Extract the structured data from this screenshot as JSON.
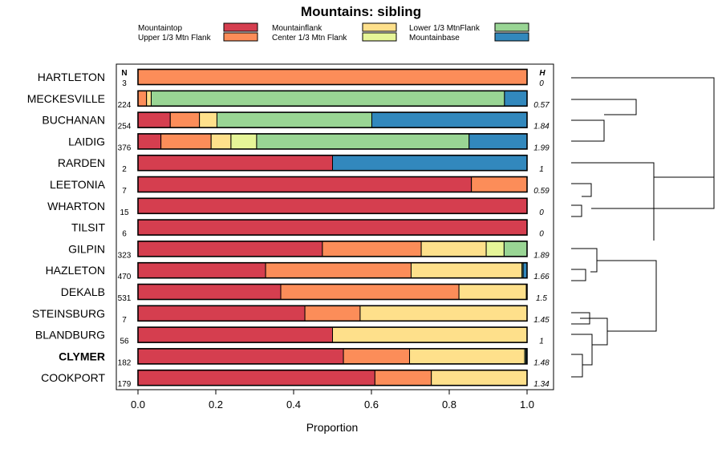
{
  "chart_data": {
    "type": "bar",
    "stacked": true,
    "orientation": "horizontal",
    "title": "Mountains: sibling",
    "xlabel": "Proportion",
    "xlim": [
      0,
      1
    ],
    "xticks": [
      "0.0",
      "0.2",
      "0.4",
      "0.6",
      "0.8",
      "1.0"
    ],
    "n_header": "N",
    "h_header": "H",
    "series": [
      {
        "name": "Mountaintop",
        "color": "#d53e4f"
      },
      {
        "name": "Upper 1/3 Mtn Flank",
        "color": "#fc8d59"
      },
      {
        "name": "Mountainflank",
        "color": "#fee08b"
      },
      {
        "name": "Center 1/3 Mtn Flank",
        "color": "#e6f598"
      },
      {
        "name": "Lower 1/3 MtnFlank",
        "color": "#99d594"
      },
      {
        "name": "Mountainbase",
        "color": "#3288bd"
      }
    ],
    "rows": [
      {
        "label": "HARTLETON",
        "n": "3",
        "h": "0",
        "bold": false,
        "values": [
          0,
          1.0,
          0,
          0,
          0,
          0
        ]
      },
      {
        "label": "MECKESVILLE",
        "n": "224",
        "h": "0.57",
        "bold": false,
        "values": [
          0,
          0.022,
          0.012,
          0,
          0.908,
          0.058
        ]
      },
      {
        "label": "BUCHANAN",
        "n": "254",
        "h": "1.84",
        "bold": false,
        "values": [
          0.083,
          0.075,
          0.045,
          0,
          0.398,
          0.399
        ]
      },
      {
        "label": "LAIDIG",
        "n": "376",
        "h": "1.99",
        "bold": false,
        "values": [
          0.059,
          0.129,
          0.051,
          0.066,
          0.546,
          0.149
        ]
      },
      {
        "label": "RARDEN",
        "n": "2",
        "h": "1",
        "bold": false,
        "values": [
          0.5,
          0,
          0,
          0,
          0,
          0.5
        ]
      },
      {
        "label": "LEETONIA",
        "n": "7",
        "h": "0.59",
        "bold": false,
        "values": [
          0.857,
          0.143,
          0,
          0,
          0,
          0
        ]
      },
      {
        "label": "WHARTON",
        "n": "15",
        "h": "0",
        "bold": false,
        "values": [
          1.0,
          0,
          0,
          0,
          0,
          0
        ]
      },
      {
        "label": "TILSIT",
        "n": "6",
        "h": "0",
        "bold": false,
        "values": [
          1.0,
          0,
          0,
          0,
          0,
          0
        ]
      },
      {
        "label": "GILPIN",
        "n": "323",
        "h": "1.89",
        "bold": false,
        "values": [
          0.474,
          0.254,
          0.167,
          0.046,
          0.059,
          0
        ]
      },
      {
        "label": "HAZLETON",
        "n": "470",
        "h": "1.66",
        "bold": false,
        "values": [
          0.328,
          0.374,
          0.285,
          0,
          0.003,
          0.01
        ]
      },
      {
        "label": "DEKALB",
        "n": "531",
        "h": "1.5",
        "bold": false,
        "values": [
          0.367,
          0.458,
          0.173,
          0,
          0.002,
          0
        ]
      },
      {
        "label": "STEINSBURG",
        "n": "7",
        "h": "1.45",
        "bold": false,
        "values": [
          0.429,
          0.142,
          0.429,
          0,
          0,
          0
        ]
      },
      {
        "label": "BLANDBURG",
        "n": "56",
        "h": "1",
        "bold": false,
        "values": [
          0.5,
          0,
          0.5,
          0,
          0,
          0
        ]
      },
      {
        "label": "CLYMER",
        "n": "182",
        "h": "1.48",
        "bold": true,
        "values": [
          0.528,
          0.17,
          0.296,
          0,
          0.003,
          0.003
        ]
      },
      {
        "label": "COOKPORT",
        "n": "179",
        "h": "1.34",
        "bold": false,
        "values": [
          0.609,
          0.145,
          0.246,
          0,
          0,
          0
        ]
      }
    ]
  }
}
